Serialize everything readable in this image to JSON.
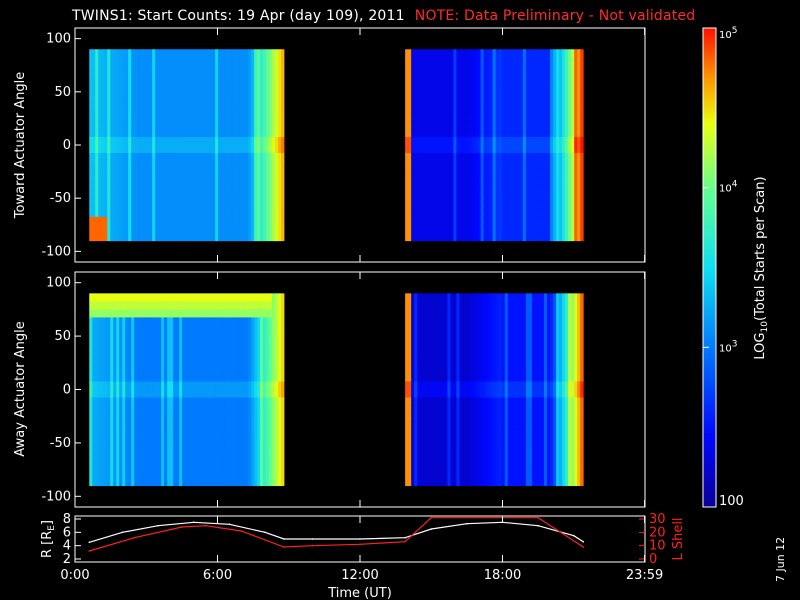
{
  "header": {
    "title": "TWINS1: Start Counts: 19 Apr (day 109), 2011",
    "note": "NOTE: Data Preliminary - Not validated"
  },
  "footer": {
    "date_stamp": "7 Jun 12"
  },
  "colors": {
    "background": "#000000",
    "axis": "#ffffff",
    "note": "#ff2020"
  },
  "chart_data": [
    {
      "type": "heatmap",
      "name": "Toward Actuator Angle",
      "ylabel": "Toward Actuator Angle",
      "ylim": [
        -110,
        110
      ],
      "yticks": [
        100,
        50,
        0,
        -50,
        -100
      ],
      "ytick_labels": [
        "100",
        "50",
        "0",
        "-50",
        "-100"
      ],
      "xlim": [
        0,
        24
      ],
      "angle_range": [
        -90,
        90
      ],
      "segments": [
        {
          "start_hr": 0.6,
          "end_hr": 8.8,
          "base_log": 3.1,
          "edge_log": 4.6,
          "hot_bottom_log": 4.8
        },
        {
          "start_hr": 13.9,
          "end_hr": 21.4,
          "base_log": 2.6,
          "edge_log": 4.9,
          "hot_left_log": 4.7
        }
      ]
    },
    {
      "type": "heatmap",
      "name": "Away Actuator Angle",
      "ylabel": "Away Actuator Angle",
      "ylim": [
        -110,
        110
      ],
      "yticks": [
        100,
        50,
        0,
        -50,
        -100
      ],
      "ytick_labels": [
        "100",
        "50",
        "0",
        "-50",
        "-100"
      ],
      "xlim": [
        0,
        24
      ],
      "angle_range": [
        -90,
        90
      ],
      "segments": [
        {
          "start_hr": 0.6,
          "end_hr": 8.8,
          "base_log": 3.0,
          "edge_log": 4.5,
          "hot_top_log": 4.4
        },
        {
          "start_hr": 13.9,
          "end_hr": 21.4,
          "base_log": 2.5,
          "edge_log": 4.8,
          "hot_left_log": 4.7
        }
      ]
    },
    {
      "type": "line",
      "name": "orbit",
      "xlabel": "Time (UT)",
      "xticks": [
        0,
        6,
        12,
        18,
        23.983
      ],
      "xtick_labels": [
        "0:00",
        "6:00",
        "12:00",
        "18:00",
        "23:59"
      ],
      "left_axis": {
        "label": "R [R",
        "sub": "E",
        "label_close": "]",
        "ylim": [
          2,
          8
        ],
        "yticks": [
          2,
          4,
          6,
          8
        ],
        "ytick_labels": [
          "2",
          "4",
          "6",
          "8"
        ]
      },
      "right_axis": {
        "label": "L Shell",
        "ylim": [
          0,
          30
        ],
        "yticks": [
          0,
          10,
          20,
          30
        ],
        "ytick_labels": [
          "0",
          "10",
          "20",
          "30"
        ]
      },
      "series": [
        {
          "name": "R",
          "axis": "left",
          "color": "#ffffff",
          "x": [
            0.6,
            2,
            3.5,
            5,
            6.5,
            8,
            8.8,
            10,
            12,
            13.9,
            15,
            16.5,
            18,
            19.5,
            21,
            21.4
          ],
          "y": [
            4.5,
            6.0,
            7.0,
            7.5,
            7.2,
            6.0,
            5.0,
            5.0,
            5.0,
            5.2,
            6.5,
            7.3,
            7.5,
            7.0,
            5.5,
            4.6
          ]
        },
        {
          "name": "L Shell",
          "axis": "right",
          "color": "#ff2020",
          "x": [
            0.6,
            2.5,
            4.5,
            5.5,
            7,
            8.8,
            10,
            12,
            13.9,
            15,
            19.5,
            21.4
          ],
          "y": [
            6,
            16,
            24,
            25,
            21,
            9,
            10,
            11,
            13,
            31,
            31,
            9
          ]
        }
      ]
    }
  ],
  "colorbar": {
    "label": "LOG",
    "label_sub": "10",
    "label_rest": "(Total Starts per Scan)",
    "min_log": 2,
    "max_log": 5,
    "ticks": [
      {
        "log": 5,
        "base": "10",
        "exp": "5",
        "label": ""
      },
      {
        "log": 4,
        "base": "10",
        "exp": "4",
        "label": ""
      },
      {
        "log": 3,
        "base": "10",
        "exp": "3",
        "label": ""
      },
      {
        "log": 2,
        "base": "",
        "exp": "",
        "label": "100"
      }
    ]
  }
}
